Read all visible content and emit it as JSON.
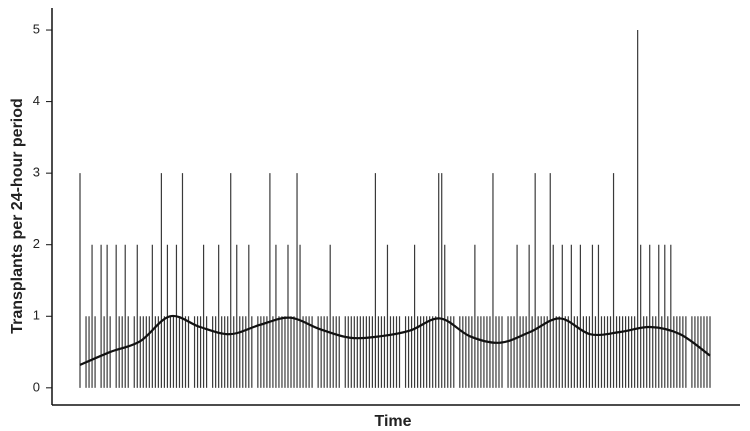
{
  "chart_data": {
    "type": "spike",
    "xlabel": "Time",
    "ylabel": "Transplants per 24-hour period",
    "values": [
      3,
      0,
      1,
      1,
      2,
      1,
      0,
      2,
      1,
      2,
      1,
      0,
      2,
      1,
      1,
      2,
      1,
      0,
      1,
      2,
      1,
      1,
      1,
      1,
      2,
      1,
      1,
      3,
      1,
      2,
      1,
      1,
      2,
      1,
      3,
      1,
      1,
      0,
      1,
      1,
      1,
      2,
      1,
      0,
      1,
      1,
      2,
      1,
      1,
      1,
      3,
      1,
      2,
      1,
      1,
      1,
      2,
      1,
      0,
      1,
      1,
      1,
      1,
      3,
      1,
      2,
      1,
      1,
      1,
      2,
      1,
      1,
      3,
      2,
      1,
      1,
      1,
      1,
      0,
      1,
      1,
      1,
      1,
      2,
      1,
      1,
      1,
      0,
      1,
      1,
      1,
      1,
      1,
      1,
      1,
      1,
      1,
      1,
      3,
      1,
      1,
      1,
      2,
      1,
      1,
      1,
      1,
      0,
      1,
      1,
      1,
      2,
      1,
      1,
      1,
      1,
      1,
      1,
      1,
      3,
      3,
      2,
      1,
      1,
      1,
      0,
      1,
      1,
      1,
      1,
      1,
      2,
      1,
      1,
      1,
      1,
      1,
      3,
      1,
      1,
      1,
      0,
      1,
      1,
      1,
      2,
      1,
      1,
      1,
      2,
      1,
      3,
      1,
      1,
      1,
      1,
      3,
      2,
      1,
      1,
      2,
      1,
      1,
      2,
      1,
      1,
      2,
      1,
      1,
      1,
      2,
      1,
      2,
      1,
      1,
      1,
      1,
      3,
      1,
      1,
      1,
      1,
      1,
      1,
      1,
      5,
      2,
      1,
      1,
      2,
      1,
      1,
      2,
      1,
      2,
      1,
      2,
      1,
      1,
      1,
      1,
      1,
      0,
      1,
      1,
      1,
      1,
      1,
      1,
      1
    ],
    "color": "#3a3a3a",
    "trend": [
      0.32,
      0.5,
      0.65,
      1.0,
      0.85,
      0.75,
      0.88,
      0.98,
      0.82,
      0.7,
      0.72,
      0.8,
      0.97,
      0.72,
      0.63,
      0.78,
      0.97,
      0.75,
      0.78,
      0.85,
      0.75,
      0.45
    ],
    "trend_color": "#111111",
    "ylim": [
      -0.24,
      5.28
    ],
    "yticks": [
      0,
      1,
      2,
      3,
      4,
      5
    ]
  }
}
